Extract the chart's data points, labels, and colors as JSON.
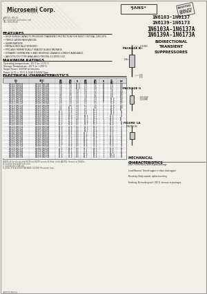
{
  "bg_color": "#e8e4de",
  "paper_color": "#f2efe9",
  "title_lines": [
    "1N6103-1N6137",
    "1N6139-1N6173",
    "1N6103A-1N6137A",
    "1N6139A-1N6173A"
  ],
  "company": "Microsemi Corp.",
  "jans_label": "*JANS*",
  "subtitle": "BIDIRECTIONAL\nTRANSIENT\nSUPPRESSORES",
  "features_title": "FEATURES",
  "features": [
    "HIGH SURGE CAPACITY PROVIDES TRANSIENT PROTECTION FOR MOST CRITICAL CIRCUITS.",
    "TRIPLE LAYER PASSIVATION.",
    "SUBMINIATURE.",
    "METALLURGICALLY BONDED.",
    "PPCLASS HERMETICALLY SEALED GLASS PACKAGE.",
    "DYNAMIC DEPENDENCY AND REVERSE LEAKAGE LOWEST AVAILABLE.",
    "JAN-S/TX/TXV TYPE AVAILABLE PER MIL-S-19500-542."
  ],
  "max_ratings_title": "MAXIMUM RATINGS",
  "max_ratings": [
    "Operating temperature: -65°C to +175°C.",
    "Storage Temperature: -65°C to +200°C.",
    "Surge Power: 1500W at 1ms/ms.",
    "Power @ TL = 75°C 1.5kW 0.025W Type.",
    "Power @ TL = 85°C 1.5kW 0.1W SUCDW Type."
  ],
  "elec_char_title": "ELECTRICAL CHARACTERISTICS",
  "table_col1_header": "EIA #",
  "table_col2_header": "JEDEC #",
  "table_rows": [
    [
      "1N6103/1N6103A",
      "1N6139/1N6139A",
      "2.1",
      "2.5",
      "10.0",
      "1.8",
      "2.2",
      "50",
      "5.5",
      "270"
    ],
    [
      "1N6104/1N6104A",
      "1N6140/1N6140A",
      "2.5",
      "3.0",
      "10.0",
      "2.1",
      "2.6",
      "50",
      "6.0",
      "250"
    ],
    [
      "1N6105/1N6105A",
      "1N6141/1N6141A",
      "2.8",
      "3.3",
      "10.0",
      "2.3",
      "2.8",
      "50",
      "6.5",
      "230"
    ],
    [
      "1N6106/1N6106A",
      "1N6142/1N6142A",
      "3.0",
      "3.6",
      "5.0",
      "2.5",
      "3.1",
      "20",
      "7.0",
      "215"
    ],
    [
      "1N6107/1N6107A",
      "1N6143/1N6143A",
      "3.5",
      "4.2",
      "5.0",
      "2.9",
      "3.6",
      "20",
      "7.5",
      "200"
    ],
    [
      "1N6108/1N6108A",
      "1N6144/1N6144A",
      "4.0",
      "4.8",
      "5.0",
      "3.4",
      "4.2",
      "20",
      "8.0",
      "190"
    ],
    [
      "1N6109/1N6109A",
      "1N6145/1N6145A",
      "4.5",
      "5.4",
      "5.0",
      "3.8",
      "4.8",
      "10",
      "9.0",
      "165"
    ],
    [
      "1N6110/1N6110A",
      "1N6146/1N6146A",
      "5.0",
      "6.0",
      "5.0",
      "4.3",
      "5.4",
      "10",
      "10.0",
      "150"
    ],
    [
      "1N6111/1N6111A",
      "1N6147/1N6147A",
      "5.8",
      "7.0",
      "5.0",
      "5.0",
      "6.2",
      "10",
      "11.0",
      "135"
    ],
    [
      "1N6112/1N6112A",
      "1N6148/1N6148A",
      "6.5",
      "7.8",
      "2.0",
      "5.5",
      "6.9",
      "5",
      "12.0",
      "125"
    ],
    [
      "1N6113/1N6113A",
      "1N6149/1N6149A",
      "7.3",
      "8.8",
      "2.0",
      "6.2",
      "7.8",
      "5",
      "13.0",
      "115"
    ],
    [
      "1N6114/1N6114A",
      "1N6150/1N6150A",
      "8.5",
      "10.2",
      "1.0",
      "7.2",
      "9.0",
      "5",
      "15.0",
      "100"
    ],
    [
      "1N6115/1N6115A",
      "1N6151/1N6151A",
      "9.5",
      "11.4",
      "1.0",
      "8.1",
      "10.1",
      "2",
      "16.5",
      "90"
    ],
    [
      "1N6116/1N6116A",
      "1N6152/1N6152A",
      "10.5",
      "12.6",
      "1.0",
      "8.9",
      "11.2",
      "2",
      "18.0",
      "83"
    ],
    [
      "1N6117/1N6117A",
      "1N6153/1N6153A",
      "11.4",
      "13.7",
      "1.0",
      "9.7",
      "12.2",
      "2",
      "19.5",
      "77"
    ],
    [
      "1N6118/1N6118A",
      "1N6154/1N6154A",
      "12.3",
      "14.8",
      "1.0",
      "10.5",
      "13.2",
      "2",
      "21.5",
      "70"
    ],
    [
      "1N6119/1N6119A",
      "1N6155/1N6155A",
      "13.3",
      "16.0",
      "1.0",
      "11.3",
      "14.2",
      "2",
      "23.0",
      "65"
    ],
    [
      "1N6120/1N6120A",
      "1N6156/1N6156A",
      "14.3",
      "17.2",
      "0.5",
      "12.2",
      "15.2",
      "1",
      "25.0",
      "60"
    ],
    [
      "1N6121/1N6121A",
      "1N6157/1N6157A",
      "15.3",
      "18.4",
      "0.5",
      "13.0",
      "16.3",
      "1",
      "27.0",
      "55"
    ],
    [
      "1N6122/1N6122A",
      "1N6158/1N6158A",
      "16.5",
      "19.8",
      "0.5",
      "14.1",
      "17.7",
      "1",
      "29.0",
      "52"
    ],
    [
      "1N6123/1N6123A",
      "1N6159/1N6159A",
      "18.0",
      "21.6",
      "0.5",
      "15.3",
      "19.2",
      "1",
      "31.5",
      "47"
    ],
    [
      "1N6124/1N6124A",
      "1N6160/1N6160A",
      "19.8",
      "23.8",
      "0.5",
      "16.8",
      "21.1",
      "1",
      "34.5",
      "43"
    ],
    [
      "1N6125/1N6125A",
      "1N6161/1N6161A",
      "21.3",
      "25.6",
      "0.5",
      "18.1",
      "22.8",
      "1",
      "37.0",
      "40"
    ],
    [
      "1N6126/1N6126A",
      "1N6162/1N6162A",
      "23.8",
      "28.6",
      "0.5",
      "20.2",
      "25.4",
      "1",
      "41.5",
      "36"
    ],
    [
      "1N6127/1N6127A",
      "1N6163/1N6163A",
      "26.4",
      "31.7",
      "0.5",
      "22.4",
      "28.2",
      "1",
      "46.5",
      "32"
    ],
    [
      "1N6128/1N6128A",
      "1N6164/1N6164A",
      "29.0",
      "34.8",
      "0.5",
      "24.7",
      "31.0",
      "1",
      "51.0",
      "29"
    ],
    [
      "1N6129/1N6129A",
      "1N6165/1N6165A",
      "31.0",
      "37.2",
      "0.5",
      "26.4",
      "33.1",
      "1",
      "55.0",
      "27"
    ],
    [
      "1N6130/1N6130A",
      "1N6166/1N6166A",
      "33.5",
      "40.2",
      "0.5",
      "28.5",
      "35.8",
      "1",
      "59.0",
      "25"
    ],
    [
      "1N6131/1N6131A",
      "1N6167/1N6167A",
      "37.0",
      "44.4",
      "0.5",
      "31.5",
      "39.5",
      "1",
      "65.0",
      "23"
    ],
    [
      "1N6132/1N6132A",
      "1N6168/1N6168A",
      "40.7",
      "48.8",
      "0.5",
      "34.6",
      "43.4",
      "1",
      "71.0",
      "21"
    ],
    [
      "1N6133/1N6133A",
      "1N6169/1N6169A",
      "45.5",
      "54.6",
      "0.5",
      "38.7",
      "48.5",
      "1",
      "79.0",
      "19"
    ],
    [
      "1N6134/1N6134A",
      "1N6170/1N6170A",
      "50.1",
      "60.1",
      "0.5",
      "42.6",
      "53.4",
      "1",
      "87.0",
      "17"
    ],
    [
      "1N6135/1N6135A",
      "1N6171/1N6171A",
      "54.7",
      "65.6",
      "0.5",
      "46.5",
      "58.3",
      "1",
      "95.0",
      "16"
    ],
    [
      "1N6136/1N6136A",
      "1N6172/1N6172A",
      "60.0",
      "72.0",
      "0.5",
      "51.0",
      "64.0",
      "1",
      "105.0",
      "14"
    ],
    [
      "1N6137/1N6137A",
      "1N6173/1N6173A",
      "66.0",
      "79.2",
      "0.5",
      "56.1",
      "70.4",
      "1",
      "113.0",
      "13"
    ]
  ],
  "notes_line": "NOTES: A. For the-de units NOTE and NOTX version, B. Note: in the JANTXV, there is no 1N616x.",
  "notes_lines": [
    "B. To allow level of SD sub-units.",
    "C. Confirm the 1.5W unit.",
    "D. JEDEC STYLE DION-R PACKAGE. SUCDW  Microsemi Corp."
  ],
  "mech_title": "MECHANICAL\nCHARACTERISTICS",
  "mech_text1": "Case: Hermetically sealed glass package",
  "mech_text2": "Lead Material: Tinned copper or silver clad copper",
  "mech_text3": "Mounting: Body unaxial, alpha mounting",
  "mech_text4": "Finishing: No marking with .010 D. stresses in packages.",
  "stamp_text": "AUDITED\nQUALITY\nSYSTEM",
  "page_info": "JANTXV1N6154"
}
